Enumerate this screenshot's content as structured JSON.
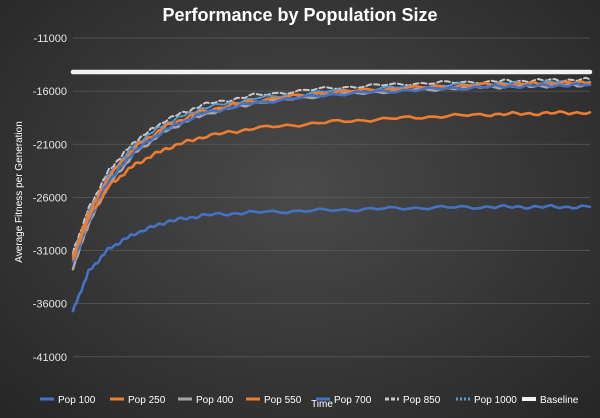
{
  "chart_data": {
    "type": "line",
    "title": "Performance by Population Size",
    "xlabel": "Time",
    "ylabel": "Average Fitness per Generation",
    "ylim": [
      -43000,
      -11000
    ],
    "y_ticks": [
      -11000,
      -16000,
      -21000,
      -26000,
      -31000,
      -36000,
      -41000
    ],
    "y_tick_labels": [
      "-11000",
      "-16000",
      "-21000",
      "-26000",
      "-31000",
      "-36000",
      "-41000"
    ],
    "x_range": [
      0,
      100
    ],
    "grid": true,
    "legend_position": "bottom",
    "series": [
      {
        "name": "Pop 100",
        "color": "#4472c4",
        "style": "solid",
        "x": [
          0,
          3,
          7,
          12,
          18,
          25,
          35,
          50,
          65,
          80,
          90,
          100
        ],
        "y": [
          -36700,
          -33000,
          -30800,
          -29400,
          -28300,
          -27700,
          -27400,
          -27200,
          -27000,
          -26900,
          -26900,
          -26900
        ]
      },
      {
        "name": "Pop 250",
        "color": "#ed7d31",
        "style": "solid",
        "x": [
          0,
          3,
          7,
          12,
          18,
          25,
          35,
          50,
          65,
          80,
          90,
          100
        ],
        "y": [
          -31800,
          -27900,
          -24900,
          -22900,
          -21400,
          -20300,
          -19500,
          -18900,
          -18500,
          -18200,
          -18100,
          -18000
        ]
      },
      {
        "name": "Pop 400",
        "color": "#a5a5a5",
        "style": "solid",
        "x": [
          0,
          3,
          7,
          12,
          18,
          25,
          35,
          50,
          65,
          80,
          90,
          100
        ],
        "y": [
          -32600,
          -28500,
          -24700,
          -21800,
          -19700,
          -18200,
          -17100,
          -16300,
          -15900,
          -15600,
          -15500,
          -15400
        ]
      },
      {
        "name": "Pop 550",
        "color": "#ed7d31",
        "style": "solid",
        "x": [
          0,
          3,
          7,
          12,
          18,
          25,
          35,
          50,
          65,
          80,
          90,
          100
        ],
        "y": [
          -31600,
          -27600,
          -24000,
          -21300,
          -19300,
          -17900,
          -16900,
          -16100,
          -15700,
          -15400,
          -15300,
          -15200
        ]
      },
      {
        "name": "Pop 700",
        "color": "#4472c4",
        "style": "solid",
        "x": [
          0,
          3,
          7,
          12,
          18,
          25,
          35,
          50,
          65,
          80,
          90,
          100
        ],
        "y": [
          -32100,
          -28200,
          -24400,
          -21600,
          -19600,
          -18100,
          -17100,
          -16300,
          -15900,
          -15600,
          -15500,
          -15400
        ]
      },
      {
        "name": "Pop 850",
        "color": "#c9c9c9",
        "style": "dashed",
        "x": [
          0,
          3,
          7,
          12,
          18,
          25,
          35,
          50,
          65,
          80,
          90,
          100
        ],
        "y": [
          -31200,
          -27100,
          -23400,
          -20700,
          -18700,
          -17300,
          -16400,
          -15700,
          -15300,
          -15100,
          -15000,
          -14900
        ]
      },
      {
        "name": "Pop 1000",
        "color": "#5b9bd5",
        "style": "dotted",
        "x": [
          0,
          3,
          7,
          12,
          18,
          25,
          35,
          50,
          65,
          80,
          90,
          100
        ],
        "y": [
          -31500,
          -27400,
          -23800,
          -21000,
          -19000,
          -17600,
          -16700,
          -16000,
          -15600,
          -15300,
          -15200,
          -15100
        ]
      },
      {
        "name": "Baseline",
        "color": "#f2f2f2",
        "style": "solid",
        "x": [
          0,
          100
        ],
        "y": [
          -14200,
          -14200
        ]
      }
    ]
  }
}
